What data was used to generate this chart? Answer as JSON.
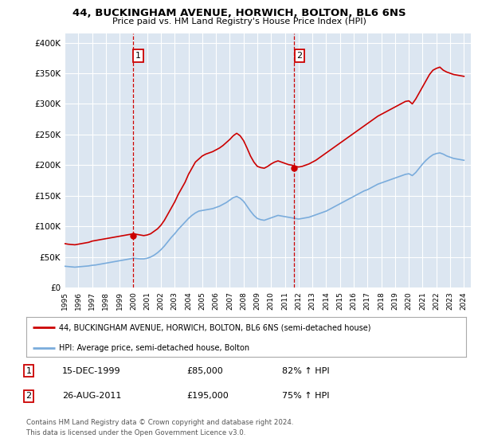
{
  "title": "44, BUCKINGHAM AVENUE, HORWICH, BOLTON, BL6 6NS",
  "subtitle": "Price paid vs. HM Land Registry's House Price Index (HPI)",
  "legend_line1": "44, BUCKINGHAM AVENUE, HORWICH, BOLTON, BL6 6NS (semi-detached house)",
  "legend_line2": "HPI: Average price, semi-detached house, Bolton",
  "footnote1": "Contains HM Land Registry data © Crown copyright and database right 2024.",
  "footnote2": "This data is licensed under the Open Government Licence v3.0.",
  "ylabel_ticks": [
    "£0",
    "£50K",
    "£100K",
    "£150K",
    "£200K",
    "£250K",
    "£300K",
    "£350K",
    "£400K"
  ],
  "ytick_values": [
    0,
    50000,
    100000,
    150000,
    200000,
    250000,
    300000,
    350000,
    400000
  ],
  "ylim": [
    0,
    415000
  ],
  "xlim_start": 1995.0,
  "xlim_end": 2024.5,
  "purchase1_year": 1999.96,
  "purchase1_price": 85000,
  "purchase1_label": "1",
  "purchase1_date": "15-DEC-1999",
  "purchase1_price_str": "£85,000",
  "purchase1_hpi": "82% ↑ HPI",
  "purchase2_year": 2011.65,
  "purchase2_price": 195000,
  "purchase2_label": "2",
  "purchase2_date": "26-AUG-2011",
  "purchase2_price_str": "£195,000",
  "purchase2_hpi": "75% ↑ HPI",
  "red_color": "#cc0000",
  "blue_color": "#7aacdc",
  "bg_color": "#dce6f1",
  "grid_color": "#ffffff",
  "marker_box_color": "#cc0000",
  "red_hpi_data": {
    "years": [
      1995.0,
      1995.25,
      1995.5,
      1995.75,
      1996.0,
      1996.25,
      1996.5,
      1996.75,
      1997.0,
      1997.25,
      1997.5,
      1997.75,
      1998.0,
      1998.25,
      1998.5,
      1998.75,
      1999.0,
      1999.25,
      1999.5,
      1999.75,
      2000.0,
      2000.25,
      2000.5,
      2000.75,
      2001.0,
      2001.25,
      2001.5,
      2001.75,
      2002.0,
      2002.25,
      2002.5,
      2002.75,
      2003.0,
      2003.25,
      2003.5,
      2003.75,
      2004.0,
      2004.25,
      2004.5,
      2004.75,
      2005.0,
      2005.25,
      2005.5,
      2005.75,
      2006.0,
      2006.25,
      2006.5,
      2006.75,
      2007.0,
      2007.25,
      2007.5,
      2007.75,
      2008.0,
      2008.25,
      2008.5,
      2008.75,
      2009.0,
      2009.25,
      2009.5,
      2009.75,
      2010.0,
      2010.25,
      2010.5,
      2010.75,
      2011.0,
      2011.25,
      2011.5,
      2011.75,
      2012.0,
      2012.25,
      2012.5,
      2012.75,
      2013.0,
      2013.25,
      2013.5,
      2013.75,
      2014.0,
      2014.25,
      2014.5,
      2014.75,
      2015.0,
      2015.25,
      2015.5,
      2015.75,
      2016.0,
      2016.25,
      2016.5,
      2016.75,
      2017.0,
      2017.25,
      2017.5,
      2017.75,
      2018.0,
      2018.25,
      2018.5,
      2018.75,
      2019.0,
      2019.25,
      2019.5,
      2019.75,
      2020.0,
      2020.25,
      2020.5,
      2020.75,
      2021.0,
      2021.25,
      2021.5,
      2021.75,
      2022.0,
      2022.25,
      2022.5,
      2022.75,
      2023.0,
      2023.25,
      2023.5,
      2023.75,
      2024.0
    ],
    "values": [
      72000,
      71000,
      70500,
      70000,
      71000,
      72000,
      73000,
      74000,
      76000,
      77000,
      78000,
      79000,
      80000,
      81000,
      82000,
      83000,
      84000,
      85000,
      86000,
      87000,
      88000,
      87000,
      86000,
      85000,
      86000,
      88000,
      92000,
      96000,
      102000,
      110000,
      120000,
      130000,
      140000,
      152000,
      162000,
      172000,
      185000,
      195000,
      205000,
      210000,
      215000,
      218000,
      220000,
      222000,
      225000,
      228000,
      232000,
      237000,
      242000,
      248000,
      252000,
      248000,
      240000,
      228000,
      215000,
      205000,
      198000,
      196000,
      195000,
      198000,
      202000,
      205000,
      207000,
      205000,
      203000,
      201000,
      200000,
      198000,
      197000,
      198000,
      200000,
      202000,
      205000,
      208000,
      212000,
      216000,
      220000,
      224000,
      228000,
      232000,
      236000,
      240000,
      244000,
      248000,
      252000,
      256000,
      260000,
      264000,
      268000,
      272000,
      276000,
      280000,
      283000,
      286000,
      289000,
      292000,
      295000,
      298000,
      301000,
      304000,
      305000,
      300000,
      308000,
      318000,
      328000,
      338000,
      348000,
      355000,
      358000,
      360000,
      355000,
      352000,
      350000,
      348000,
      347000,
      346000,
      345000
    ]
  },
  "blue_hpi_data": {
    "years": [
      1995.0,
      1995.25,
      1995.5,
      1995.75,
      1996.0,
      1996.25,
      1996.5,
      1996.75,
      1997.0,
      1997.25,
      1997.5,
      1997.75,
      1998.0,
      1998.25,
      1998.5,
      1998.75,
      1999.0,
      1999.25,
      1999.5,
      1999.75,
      2000.0,
      2000.25,
      2000.5,
      2000.75,
      2001.0,
      2001.25,
      2001.5,
      2001.75,
      2002.0,
      2002.25,
      2002.5,
      2002.75,
      2003.0,
      2003.25,
      2003.5,
      2003.75,
      2004.0,
      2004.25,
      2004.5,
      2004.75,
      2005.0,
      2005.25,
      2005.5,
      2005.75,
      2006.0,
      2006.25,
      2006.5,
      2006.75,
      2007.0,
      2007.25,
      2007.5,
      2007.75,
      2008.0,
      2008.25,
      2008.5,
      2008.75,
      2009.0,
      2009.25,
      2009.5,
      2009.75,
      2010.0,
      2010.25,
      2010.5,
      2010.75,
      2011.0,
      2011.25,
      2011.5,
      2011.75,
      2012.0,
      2012.25,
      2012.5,
      2012.75,
      2013.0,
      2013.25,
      2013.5,
      2013.75,
      2014.0,
      2014.25,
      2014.5,
      2014.75,
      2015.0,
      2015.25,
      2015.5,
      2015.75,
      2016.0,
      2016.25,
      2016.5,
      2016.75,
      2017.0,
      2017.25,
      2017.5,
      2017.75,
      2018.0,
      2018.25,
      2018.5,
      2018.75,
      2019.0,
      2019.25,
      2019.5,
      2019.75,
      2020.0,
      2020.25,
      2020.5,
      2020.75,
      2021.0,
      2021.25,
      2021.5,
      2021.75,
      2022.0,
      2022.25,
      2022.5,
      2022.75,
      2023.0,
      2023.25,
      2023.5,
      2023.75,
      2024.0
    ],
    "values": [
      35000,
      34500,
      34000,
      33500,
      34000,
      34500,
      35000,
      35500,
      36500,
      37000,
      38000,
      39000,
      40000,
      41000,
      42000,
      43000,
      44000,
      45000,
      46000,
      47000,
      48000,
      47500,
      47000,
      47000,
      48000,
      50000,
      53000,
      57000,
      62000,
      68000,
      75000,
      82000,
      88000,
      95000,
      101000,
      107000,
      113000,
      118000,
      122000,
      125000,
      126000,
      127000,
      128000,
      129000,
      131000,
      133000,
      136000,
      139000,
      143000,
      147000,
      149000,
      146000,
      141000,
      133000,
      125000,
      118000,
      113000,
      111000,
      110000,
      112000,
      114000,
      116000,
      118000,
      117000,
      116000,
      115000,
      114000,
      113000,
      112000,
      113000,
      114000,
      115000,
      117000,
      119000,
      121000,
      123000,
      125000,
      128000,
      131000,
      134000,
      137000,
      140000,
      143000,
      146000,
      149000,
      152000,
      155000,
      158000,
      160000,
      163000,
      166000,
      169000,
      171000,
      173000,
      175000,
      177000,
      179000,
      181000,
      183000,
      185000,
      186000,
      183000,
      188000,
      195000,
      202000,
      208000,
      213000,
      217000,
      219000,
      220000,
      218000,
      215000,
      213000,
      211000,
      210000,
      209000,
      208000
    ]
  }
}
